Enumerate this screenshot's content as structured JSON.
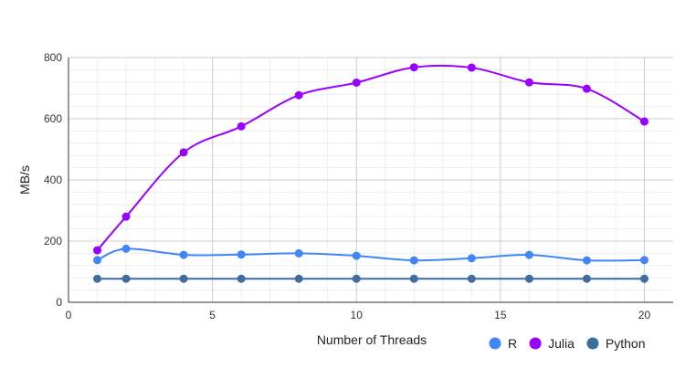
{
  "chart_data": {
    "type": "line",
    "title": "",
    "xlabel": "Number of Threads",
    "ylabel": "MB/s",
    "xlim": [
      0,
      21
    ],
    "ylim": [
      0,
      800
    ],
    "x_ticks": [
      0,
      5,
      10,
      15,
      20
    ],
    "y_ticks": [
      0,
      200,
      400,
      600,
      800
    ],
    "grid": true,
    "smooth": true,
    "legend_position": "bottom-right",
    "x": [
      1,
      2,
      4,
      6,
      8,
      10,
      12,
      14,
      16,
      18,
      20
    ],
    "series": [
      {
        "name": "R",
        "color": "#4285f4",
        "values": [
          138,
          175,
          155,
          156,
          160,
          152,
          137,
          144,
          155,
          137,
          138
        ]
      },
      {
        "name": "Julia",
        "color": "#9900ff",
        "values": [
          170,
          280,
          490,
          575,
          677,
          718,
          768,
          767,
          719,
          698,
          591
        ]
      },
      {
        "name": "Python",
        "color": "#3d6e9e",
        "values": [
          77,
          77,
          77,
          77,
          77,
          77,
          77,
          77,
          77,
          77,
          77
        ]
      }
    ]
  }
}
